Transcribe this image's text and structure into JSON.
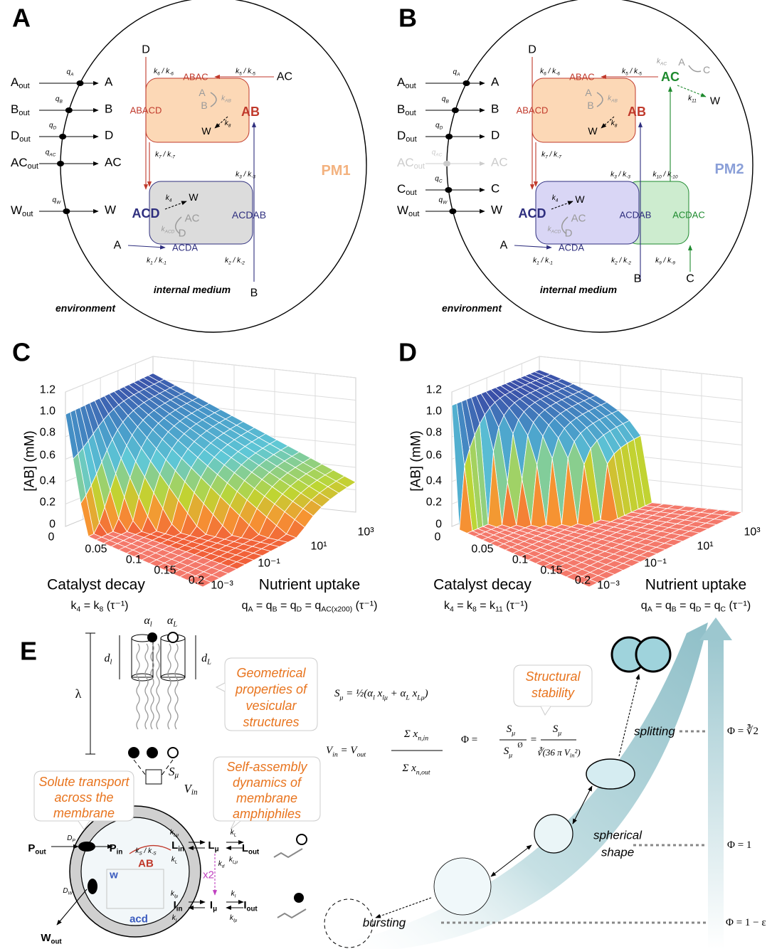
{
  "panel_a": {
    "letter": "A",
    "outside": [
      [
        "A",
        "out"
      ],
      [
        "B",
        "out"
      ],
      [
        "D",
        "out"
      ],
      [
        "AC",
        "out"
      ],
      [
        "W",
        "out"
      ]
    ],
    "inside": [
      "A",
      "B",
      "D",
      "AC",
      "W"
    ],
    "uptake": [
      [
        "q",
        "A"
      ],
      [
        "q",
        "B"
      ],
      [
        "q",
        "D"
      ],
      [
        "q",
        "AC"
      ],
      [
        "q",
        "W"
      ]
    ],
    "species": [
      "D",
      "ABAC",
      "AC",
      "ABACD",
      "AB",
      "A",
      "B",
      "W",
      "W",
      "ACD",
      "AC",
      "D",
      "ACDAB",
      "A",
      "ACDA",
      "B"
    ],
    "rates": [
      [
        "k",
        "6",
        " / k",
        "-6"
      ],
      [
        "k",
        "5",
        " / k",
        "-5"
      ],
      [
        "k",
        "AB"
      ],
      [
        "k",
        "8"
      ],
      [
        "k",
        "7",
        " / k",
        "-7"
      ],
      [
        "k",
        "3",
        " / k",
        "-3"
      ],
      [
        "k",
        "4"
      ],
      [
        "k",
        "ACD"
      ],
      [
        "k",
        "1",
        " / k",
        "-1"
      ],
      [
        "k",
        "2",
        " / k",
        "-2"
      ]
    ],
    "model": "PM1",
    "medium": "internal medium",
    "environment": "environment"
  },
  "panel_b": {
    "letter": "B",
    "outside": [
      [
        "A",
        "out"
      ],
      [
        "B",
        "out"
      ],
      [
        "D",
        "out"
      ],
      [
        "AC",
        "out"
      ],
      [
        "C",
        "out"
      ],
      [
        "W",
        "out"
      ]
    ],
    "inside": [
      "A",
      "B",
      "D",
      "AC",
      "C",
      "W"
    ],
    "uptake": [
      [
        "q",
        "A"
      ],
      [
        "q",
        "B"
      ],
      [
        "q",
        "D"
      ],
      [
        "q",
        "AC"
      ],
      [
        "q",
        "C"
      ],
      [
        "q",
        "W"
      ]
    ],
    "species": [
      "D",
      "ABAC",
      "AC",
      "A",
      "C",
      "W",
      "ABACD",
      "AB",
      "A",
      "B",
      "W",
      "W",
      "ACD",
      "AC",
      "D",
      "ACDAB",
      "ACDAC",
      "A",
      "ACDA",
      "B",
      "C"
    ],
    "rates": [
      [
        "k",
        "6",
        " / k",
        "-6"
      ],
      [
        "k",
        "5",
        " / k",
        "-5"
      ],
      [
        "k",
        "AC"
      ],
      [
        "k",
        "11"
      ],
      [
        "k",
        "AB"
      ],
      [
        "k",
        "8"
      ],
      [
        "k",
        "7",
        " / k",
        "-7"
      ],
      [
        "k",
        "3",
        " / k",
        "-3"
      ],
      [
        "k",
        "10",
        " / k",
        "-10"
      ],
      [
        "k",
        "4"
      ],
      [
        "k",
        "ACD"
      ],
      [
        "k",
        "1",
        " / k",
        "-1"
      ],
      [
        "k",
        "2",
        " / k",
        "-2"
      ],
      [
        "k",
        "9",
        " / k",
        "-9"
      ]
    ],
    "model": "PM2",
    "medium": "internal medium",
    "environment": "environment"
  },
  "panel_c": {
    "letter": "C",
    "y_label": "[AB] (mM)",
    "y_ticks": [
      "1.2",
      "1.0",
      "0.8",
      "0.6",
      "0.4",
      "0.2",
      "0"
    ],
    "x_ticks": [
      "0",
      "0.05",
      "0.1",
      "0.15",
      "0.2"
    ],
    "z_ticks": [
      "10⁻³",
      "10⁻¹",
      "10¹",
      "10³"
    ],
    "x_label": "Catalyst decay",
    "x_formula": [
      "k",
      "4",
      " = k",
      "8",
      " (τ⁻¹)"
    ],
    "z_label": "Nutrient uptake",
    "z_formula": [
      "q",
      "A",
      " = q",
      "B",
      " = q",
      "D",
      " = q",
      "AC(x200)",
      " (τ⁻¹)"
    ]
  },
  "panel_d": {
    "letter": "D",
    "y_label": "[AB] (mM)",
    "y_ticks": [
      "1.2",
      "1.0",
      "0.8",
      "0.6",
      "0.4",
      "0.2",
      "0"
    ],
    "x_ticks": [
      "0",
      "0.05",
      "0.1",
      "0.15",
      "0.2"
    ],
    "z_ticks": [
      "10⁻³",
      "10⁻¹",
      "10¹",
      "10³"
    ],
    "x_label": "Catalyst decay",
    "x_formula": [
      "k",
      "4",
      " = k",
      "8",
      " = k",
      "11",
      " (τ⁻¹)"
    ],
    "z_label": "Nutrient uptake",
    "z_formula": [
      "q",
      "A",
      " = q",
      "B",
      " = q",
      "D",
      " = q",
      "C",
      " (τ⁻¹)"
    ]
  },
  "panel_e": {
    "letter": "E",
    "alpha": [
      [
        "α",
        "l"
      ],
      [
        "α",
        "L"
      ]
    ],
    "diam": [
      [
        "d",
        "l"
      ],
      [
        "d",
        "L"
      ]
    ],
    "lambda": "λ",
    "callout_geom": [
      "Geometrical",
      "properties of",
      "vesicular",
      "structures"
    ],
    "callout_transport": [
      "Solute transport",
      "across the",
      "membrane"
    ],
    "callout_assembly": [
      "Self-assembly",
      "dynamics of",
      "membrane",
      "amphiphiles"
    ],
    "callout_stability": [
      "Structural",
      "stability"
    ],
    "s_formula": [
      "S",
      "μ",
      " = ½(α",
      "l",
      " x",
      "lμ",
      " + α",
      "L",
      " x",
      "Lμ",
      ")"
    ],
    "v_formula": {
      "lhs": [
        "V",
        "in",
        " = V",
        "out"
      ],
      "num": [
        "Σ x",
        "n,in"
      ],
      "den": [
        "Σ x",
        "n,out"
      ]
    },
    "phi_formula": {
      "lhs": "Φ =",
      "num1": [
        "S",
        "μ"
      ],
      "den1": [
        "S",
        "μ"
      ],
      "den1_mark": "Ø",
      "eq": "=",
      "num2": [
        "S",
        "μ"
      ],
      "den2": [
        "∛(36 π V",
        "in",
        "²)"
      ]
    },
    "surface": [
      "S",
      "μ"
    ],
    "volume": [
      "V",
      "in"
    ],
    "transport_labels": [
      [
        "P",
        "out"
      ],
      [
        "D",
        "P"
      ],
      [
        "P",
        "in"
      ],
      [
        "L",
        "in"
      ],
      [
        "L",
        "μ"
      ],
      [
        "L",
        "out"
      ],
      [
        "k",
        "Lμ"
      ],
      [
        "k",
        "L"
      ],
      [
        "k",
        "L"
      ],
      [
        "k",
        "Lμ"
      ],
      [
        "k",
        "S",
        " / k",
        "-S"
      ],
      "AB",
      "w",
      "acd",
      [
        "k",
        "d"
      ],
      "x2",
      [
        "I",
        "in"
      ],
      [
        "I",
        "μ"
      ],
      [
        "I",
        "out"
      ],
      [
        "k",
        "Iμ"
      ],
      [
        "k",
        "I"
      ],
      [
        "k",
        "I"
      ],
      [
        "k",
        "Iμ"
      ],
      [
        "D",
        "W"
      ],
      [
        "W",
        "out"
      ]
    ],
    "shape_labels": [
      "splitting",
      "spherical",
      "shape",
      "bursting"
    ],
    "phi_levels": [
      "Φ = ∛2",
      "Φ = 1",
      "Φ = 1 − ε"
    ]
  }
}
